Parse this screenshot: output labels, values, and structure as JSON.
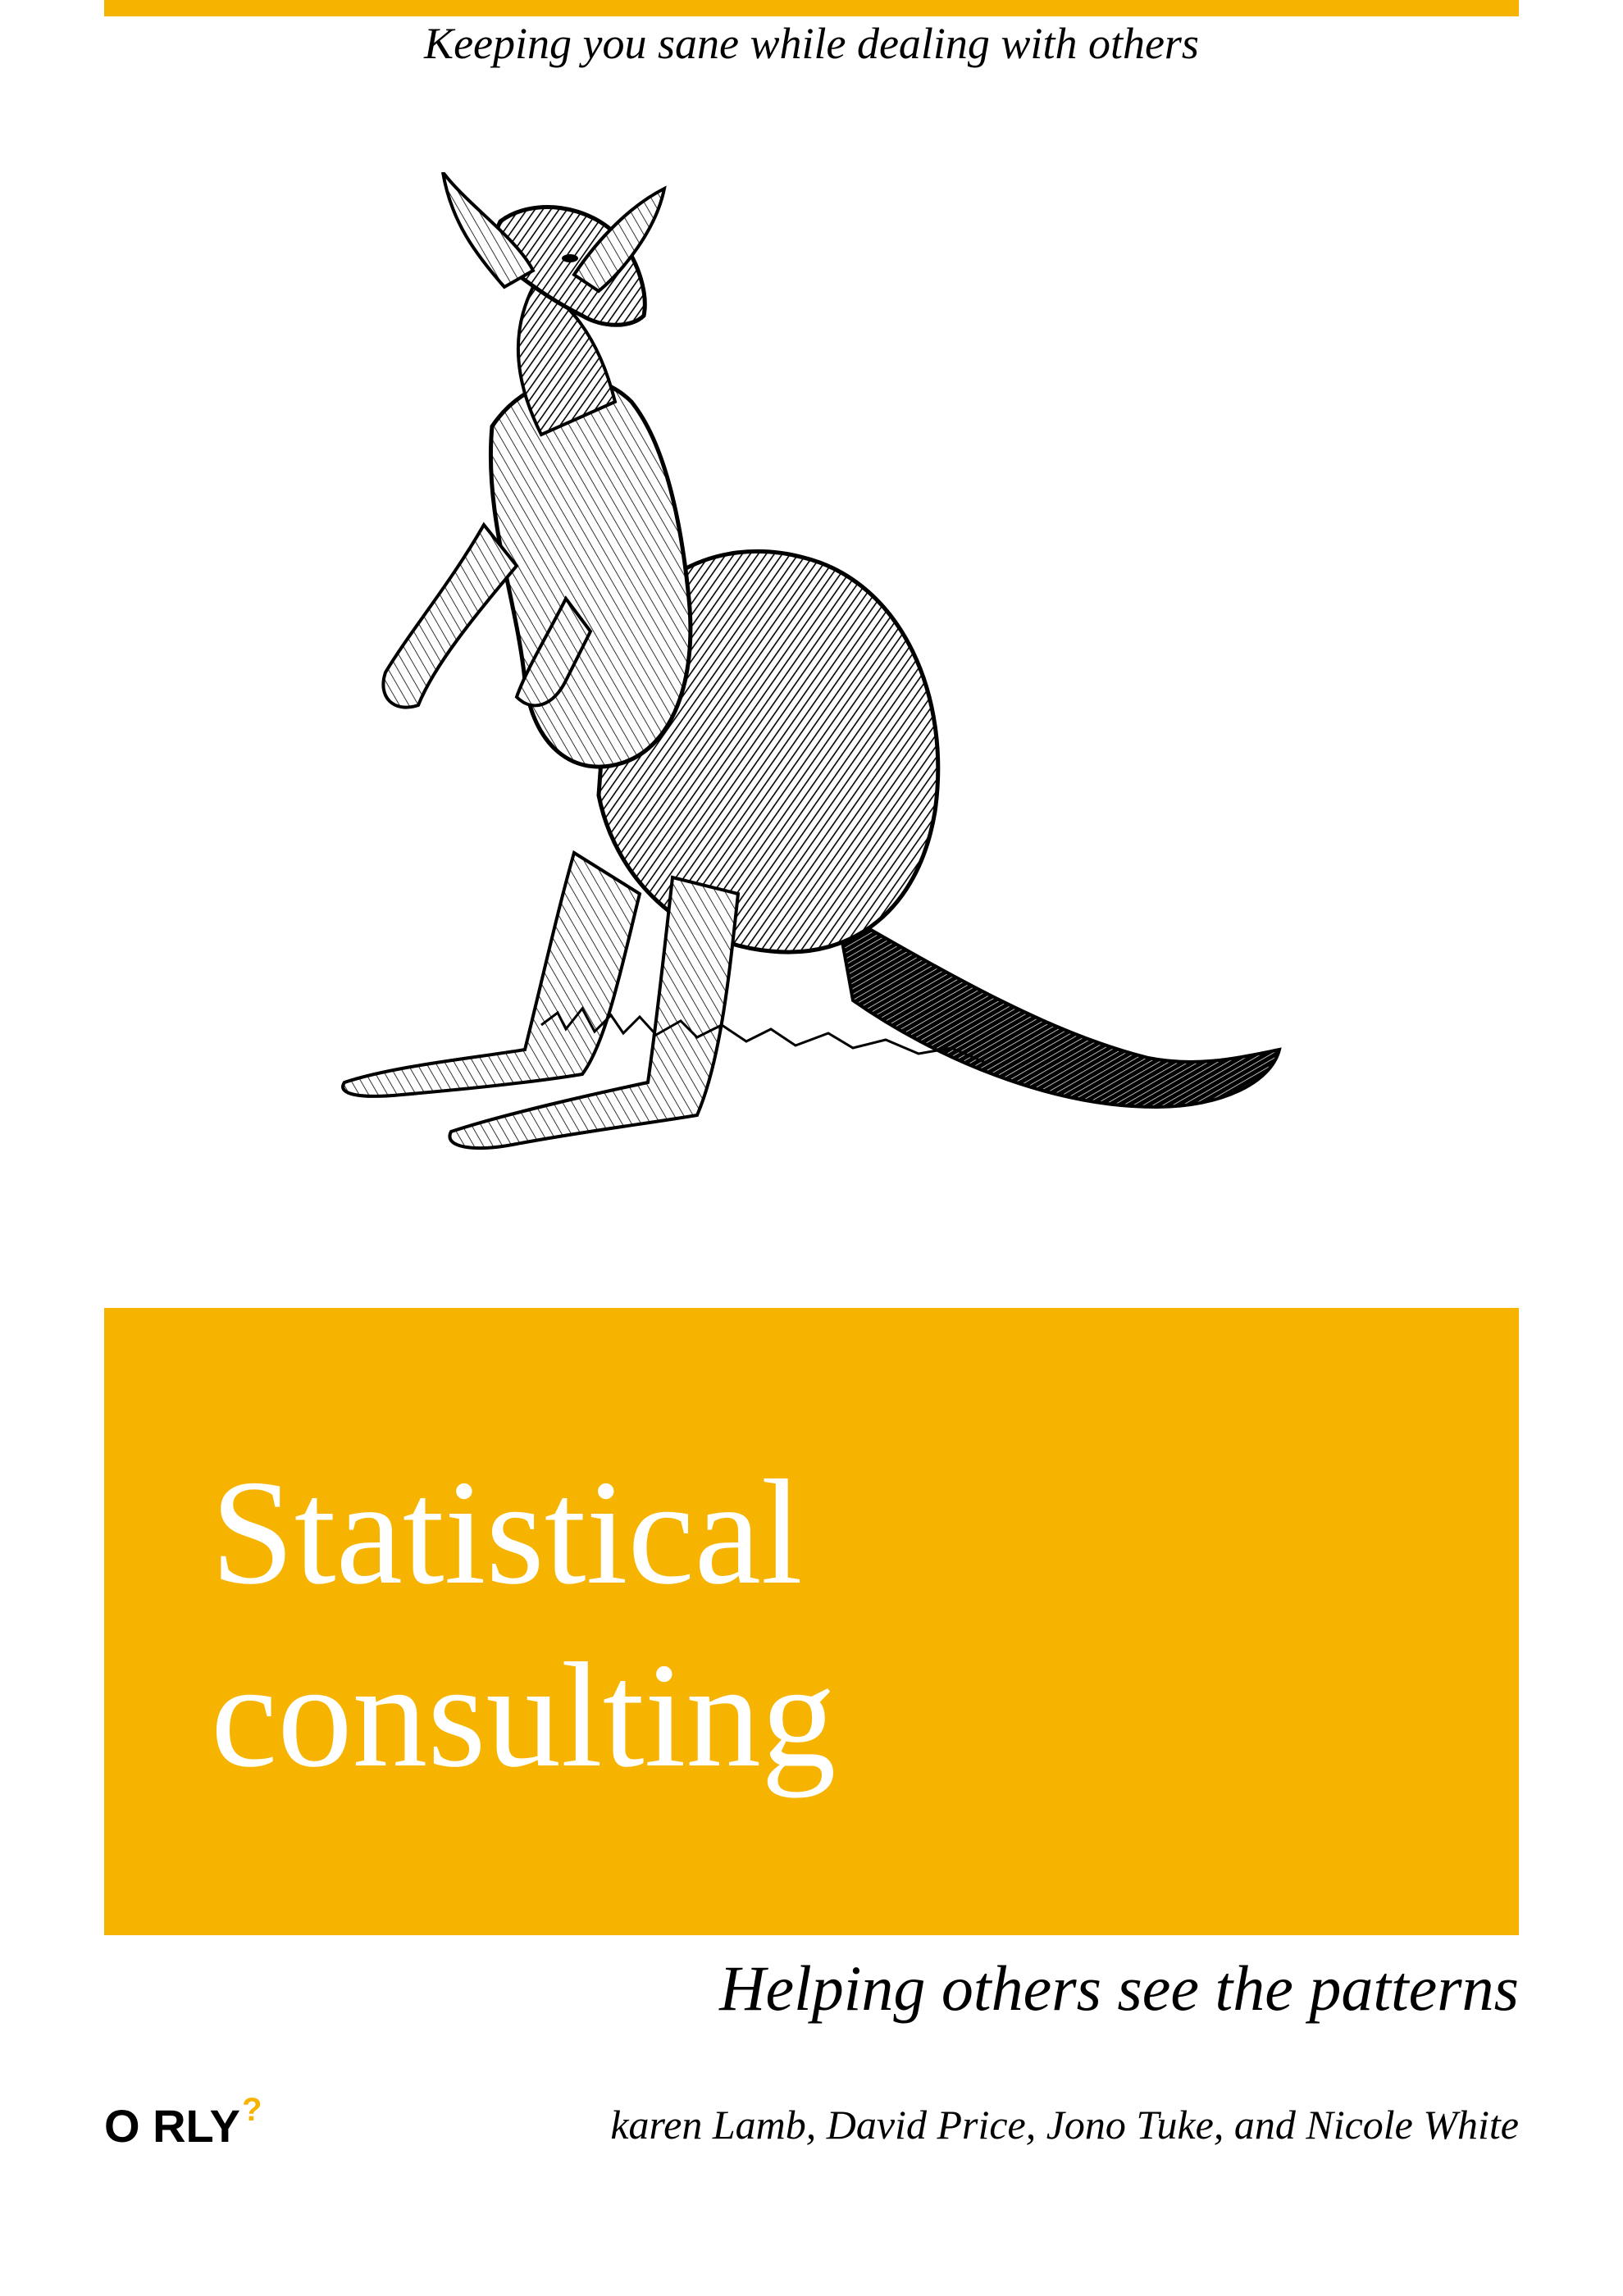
{
  "cover": {
    "tagline": "Keeping you sane while dealing with others",
    "title_line1": "Statistical",
    "title_line2": "consulting",
    "subtitle": "Helping others see the patterns",
    "publisher_logo": "O RLY",
    "publisher_logo_mark": "?",
    "authors": "karen Lamb, David Price, Jono Tuke, and Nicole White",
    "illustration": "kangaroo-engraving",
    "accent_color": "#f6b400",
    "title_color": "#ffffff",
    "text_color": "#000000"
  }
}
